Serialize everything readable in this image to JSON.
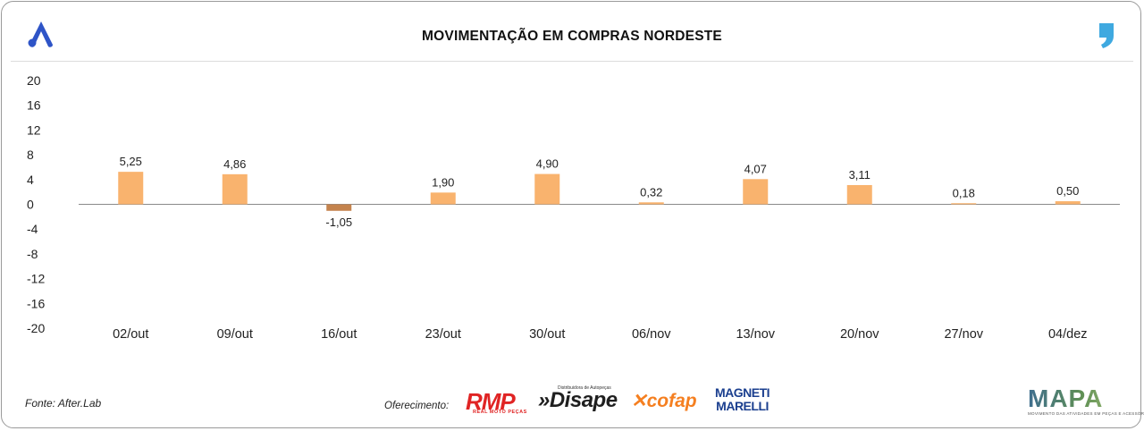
{
  "title": "MOVIMENTAÇÃO EM COMPRAS NORDESTE",
  "footer": {
    "source": "Fonte: After.Lab",
    "offer_label": "Oferecimento:"
  },
  "sponsors": {
    "rmp": "RMP",
    "rmp_sub": "REAL MOTO PEÇAS",
    "disape": "»Disape",
    "disape_sub": "Distribuidora de Autopeças",
    "cofap": "cofap",
    "magneti_line1": "MAGNETI",
    "magneti_line2": "MARELLI",
    "mapa": "MAPA",
    "mapa_sub": "MOVIMENTO DAS ATIVIDADES EM PEÇAS E ACESSÓRIOS"
  },
  "colors": {
    "positive": "#F9B36E",
    "negative": "#C4834D",
    "accent_blue": "#2E54C7",
    "comma_blue": "#3FA9E0"
  },
  "chart_data": {
    "type": "bar",
    "title": "MOVIMENTAÇÃO EM COMPRAS NORDESTE",
    "categories": [
      "02/out",
      "09/out",
      "16/out",
      "23/out",
      "30/out",
      "06/nov",
      "13/nov",
      "20/nov",
      "27/nov",
      "04/dez"
    ],
    "values": [
      5.25,
      4.86,
      -1.05,
      1.9,
      4.9,
      0.32,
      4.07,
      3.11,
      0.18,
      0.5
    ],
    "value_labels": [
      "5,25",
      "4,86",
      "-1,05",
      "1,90",
      "4,90",
      "0,32",
      "4,07",
      "3,11",
      "0,18",
      "0,50"
    ],
    "yticks": [
      20,
      16,
      12,
      8,
      4,
      0,
      -4,
      -8,
      -12,
      -16,
      -20
    ],
    "ytick_labels": [
      "20",
      "16",
      "12",
      "8",
      "4",
      "0",
      "-4",
      "-8",
      "-12",
      "-16",
      "-20"
    ],
    "ylim": [
      -20,
      20
    ],
    "xlabel": "",
    "ylabel": "",
    "grid": false,
    "legend": "none"
  }
}
